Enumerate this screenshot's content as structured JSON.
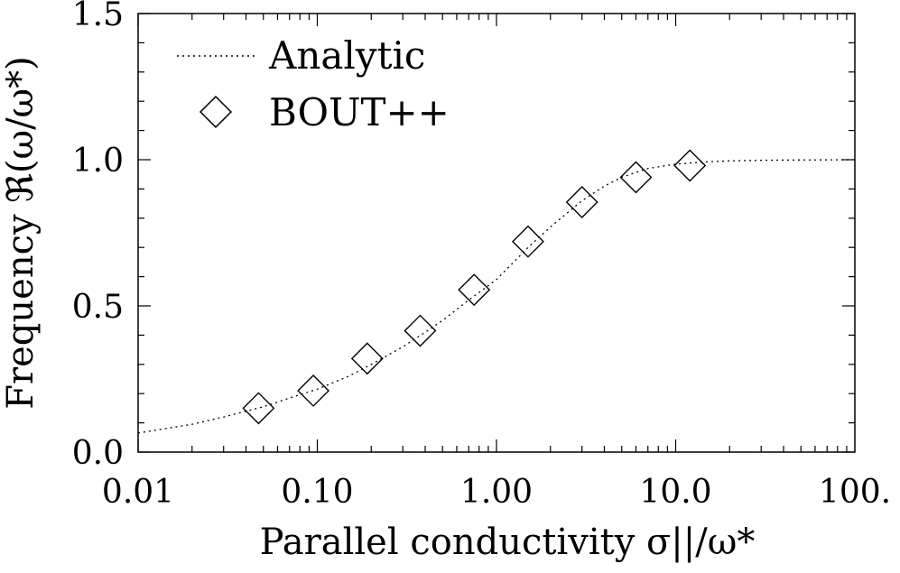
{
  "chart_data": {
    "type": "scatter",
    "xscale": "log",
    "xlim": [
      0.01,
      100
    ],
    "ylim": [
      0.0,
      1.5
    ],
    "x_tick_labels": [
      "0.01",
      "0.10",
      "1.00",
      "10.0",
      "100."
    ],
    "x_tick_values": [
      0.01,
      0.1,
      1,
      10,
      100
    ],
    "y_tick_labels": [
      "0.0",
      "0.5",
      "1.0",
      "1.5"
    ],
    "y_tick_values": [
      0.0,
      0.5,
      1.0,
      1.5
    ],
    "xlabel": "Parallel conductivity σ||/ω*",
    "ylabel": "Frequency ℜ(ω/ω*)",
    "legend_position": "top-left",
    "grid": false,
    "series": [
      {
        "name": "Analytic",
        "style": "dotted-line",
        "x": [
          0.01,
          0.02,
          0.03,
          0.05,
          0.07,
          0.1,
          0.15,
          0.2,
          0.3,
          0.4,
          0.5,
          0.7,
          1.0,
          1.5,
          2.0,
          3.0,
          4.0,
          5.0,
          7.0,
          10.0,
          15.0,
          20.0,
          30.0,
          50.0,
          100.0
        ],
        "y": [
          0.065,
          0.095,
          0.12,
          0.155,
          0.185,
          0.215,
          0.26,
          0.3,
          0.36,
          0.41,
          0.45,
          0.52,
          0.59,
          0.7,
          0.77,
          0.86,
          0.91,
          0.94,
          0.97,
          0.985,
          0.993,
          0.996,
          0.998,
          0.999,
          1.0
        ]
      },
      {
        "name": "BOUT++",
        "style": "open-diamond",
        "x": [
          0.047,
          0.095,
          0.19,
          0.375,
          0.75,
          1.5,
          3.0,
          6.0,
          12.0
        ],
        "y": [
          0.15,
          0.21,
          0.32,
          0.415,
          0.555,
          0.72,
          0.855,
          0.94,
          0.98
        ]
      }
    ]
  }
}
